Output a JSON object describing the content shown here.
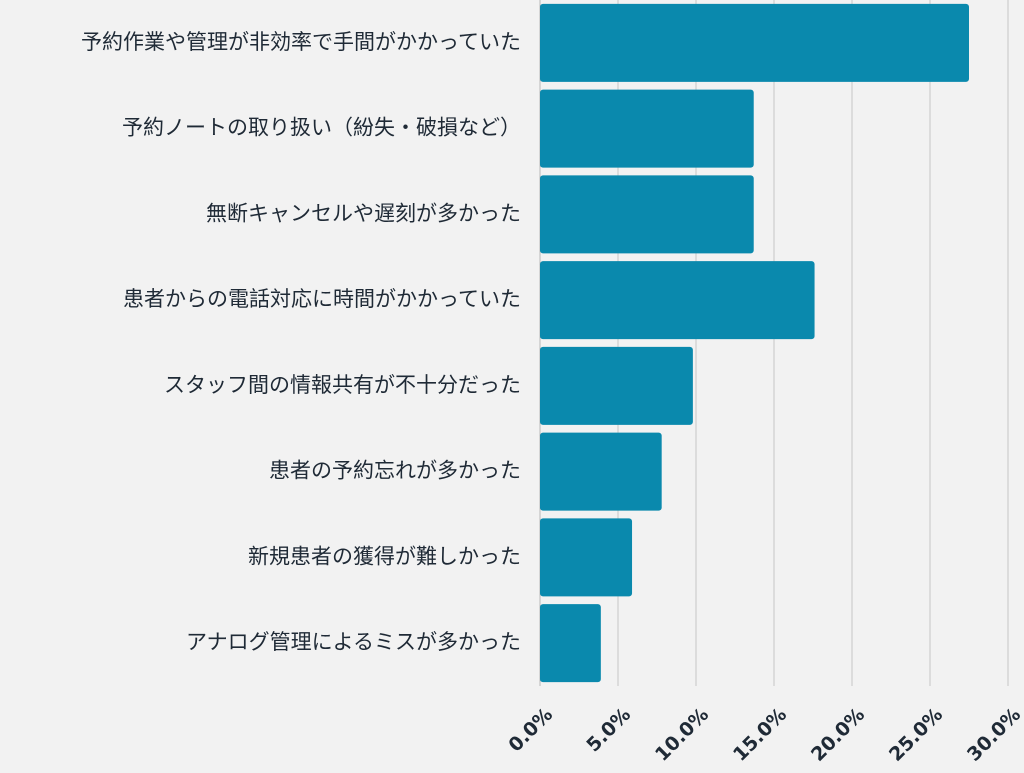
{
  "chart_data": {
    "type": "bar",
    "orientation": "horizontal",
    "categories": [
      "予約作業や管理が非効率で手間がかかっていた",
      "予約ノートの取り扱い（紛失・破損など）",
      "無断キャンセルや遅刻が多かった",
      "患者からの電話対応に時間がかかっていた",
      "スタッフ間の情報共有が不十分だった",
      "患者の予約忘れが多かった",
      "新規患者の獲得が難しかった",
      "アナログ管理によるミスが多かった"
    ],
    "values": [
      27.5,
      13.7,
      13.7,
      17.6,
      9.8,
      7.8,
      5.9,
      3.9
    ],
    "xlim": [
      0,
      30
    ],
    "x_ticks": [
      "0.0%",
      "5.0%",
      "10.0%",
      "15.0%",
      "20.0%",
      "25.0%",
      "30.0%"
    ],
    "x_tick_values": [
      0,
      5,
      10,
      15,
      20,
      25,
      30
    ],
    "grid": true,
    "bar_color": "#0a89ad",
    "background_color": "#f2f2f2",
    "title": "",
    "xlabel": "",
    "ylabel": ""
  }
}
